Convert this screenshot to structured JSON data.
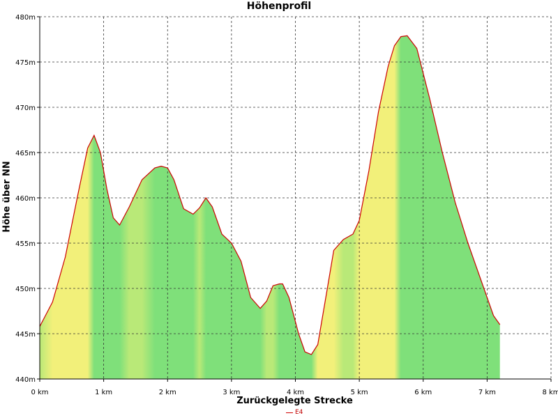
{
  "chart_data": {
    "type": "area",
    "title": "Höhenprofil",
    "xlabel": "Zurückgelegte Strecke",
    "ylabel": "Höhe über NN",
    "xlim": [
      0,
      8
    ],
    "ylim": [
      440,
      480
    ],
    "x_ticks": [
      0,
      1,
      2,
      3,
      4,
      5,
      6,
      7,
      8
    ],
    "x_tick_labels": [
      "0 km",
      "1 km",
      "2 km",
      "3 km",
      "4 km",
      "5 km",
      "6 km",
      "7 km",
      "8 km"
    ],
    "y_ticks": [
      440,
      445,
      450,
      455,
      460,
      465,
      470,
      475,
      480
    ],
    "y_tick_labels": [
      "440m",
      "445m",
      "450m",
      "455m",
      "460m",
      "465m",
      "470m",
      "475m",
      "480m"
    ],
    "grid": true,
    "legend_position": "bottom",
    "series": [
      {
        "name": "E4",
        "line_color": "#cc0000",
        "x": [
          0,
          0.2,
          0.4,
          0.6,
          0.75,
          0.85,
          0.95,
          1.05,
          1.15,
          1.25,
          1.4,
          1.6,
          1.8,
          1.9,
          2.0,
          2.1,
          2.25,
          2.4,
          2.5,
          2.6,
          2.7,
          2.85,
          3.0,
          3.15,
          3.3,
          3.45,
          3.55,
          3.65,
          3.75,
          3.8,
          3.9,
          4.05,
          4.15,
          4.25,
          4.35,
          4.5,
          4.6,
          4.75,
          4.9,
          5.0,
          5.15,
          5.3,
          5.45,
          5.55,
          5.65,
          5.75,
          5.9,
          6.1,
          6.3,
          6.5,
          6.7,
          6.9,
          7.1,
          7.2
        ],
        "values": [
          445.8,
          448.5,
          453.5,
          460.5,
          465.5,
          466.9,
          465.0,
          461.0,
          457.8,
          457.0,
          459.0,
          462.0,
          463.3,
          463.5,
          463.3,
          462.0,
          458.8,
          458.2,
          458.9,
          460.0,
          459.0,
          456.0,
          455.0,
          453.0,
          449.0,
          447.8,
          448.6,
          450.3,
          450.5,
          450.5,
          449.0,
          445.0,
          443.0,
          442.7,
          443.8,
          450.0,
          454.2,
          455.4,
          456.0,
          457.5,
          463.0,
          469.5,
          474.5,
          476.8,
          477.8,
          477.9,
          476.5,
          471.0,
          465.0,
          459.5,
          455.0,
          451.0,
          447.0,
          446.0
        ]
      }
    ],
    "fill_gradient_note_colors": {
      "climb": "#f2f07a",
      "flat": "#7fe07a",
      "mid": "#b9e978"
    }
  }
}
